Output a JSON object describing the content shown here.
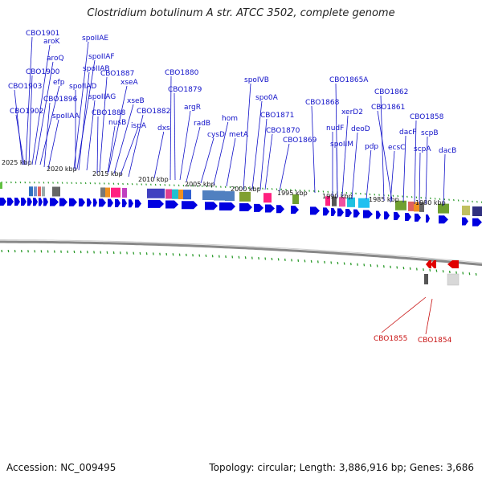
{
  "title": "Clostridium botulinum A str. ATCC 3502, complete genome",
  "accession": "Accession: NC_009495",
  "summary": "Topology: circular; Length: 3,886,916 bp; Genes: 3,686",
  "colors": {
    "label_top": "#1010c8",
    "label_bottom": "#c81010",
    "cds_forward": "#0000e0",
    "cds_reverse": "#e00000",
    "backbone": "#888888",
    "tick": "#2a9a2a"
  },
  "kbp_ticks": [
    {
      "label": "2025 kbp"
    },
    {
      "label": "2020 kbp"
    },
    {
      "label": "2015 kbp"
    },
    {
      "label": "2010 kbp"
    },
    {
      "label": "2005 kbp"
    },
    {
      "label": "2000 kbp"
    },
    {
      "label": "1995 kbp"
    },
    {
      "label": "1990 kbp"
    },
    {
      "label": "1985 kbp"
    },
    {
      "label": "1980 kbp"
    }
  ],
  "top_labels": [
    "CBO1901",
    "aroK",
    "aroQ",
    "CBO1900",
    "CBO1903",
    "efp",
    "CBO1896",
    "CBO1902",
    "spoIIAA",
    "spoIIAE",
    "spoIIAF",
    "spoIIAB",
    "spoIIAD",
    "spoIIAG",
    "CBO1887",
    "xseA",
    "CBO1888",
    "nusB",
    "xseB",
    "ispA",
    "CBO1882",
    "dxs",
    "CBO1880",
    "CBO1879",
    "argR",
    "radB",
    "cysD",
    "hom",
    "metA",
    "spoIVB",
    "spo0A",
    "CBO1871",
    "CBO1870",
    "CBO1869",
    "CBO1868",
    "CBO1865A",
    "nudF",
    "xerD2",
    "spoIIM",
    "deoD",
    "pdp",
    "CBO1862",
    "CBO1861",
    "ecsC",
    "dacF",
    "CBO1858",
    "scpA",
    "scpB",
    "dacB"
  ],
  "bottom_labels": [
    "CBO1855",
    "CBO1854"
  ]
}
